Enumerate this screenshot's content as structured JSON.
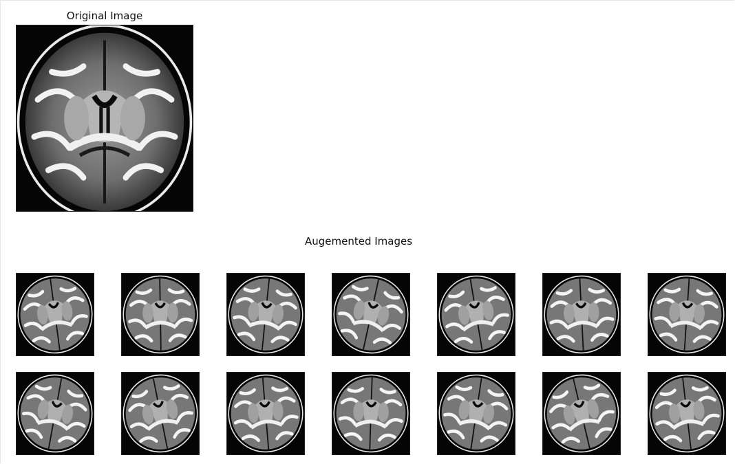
{
  "figure": {
    "original_title": "Original Image",
    "augmented_title": "Augemented Images"
  },
  "augmented": {
    "rows": 2,
    "cols": 7,
    "count": 14
  }
}
